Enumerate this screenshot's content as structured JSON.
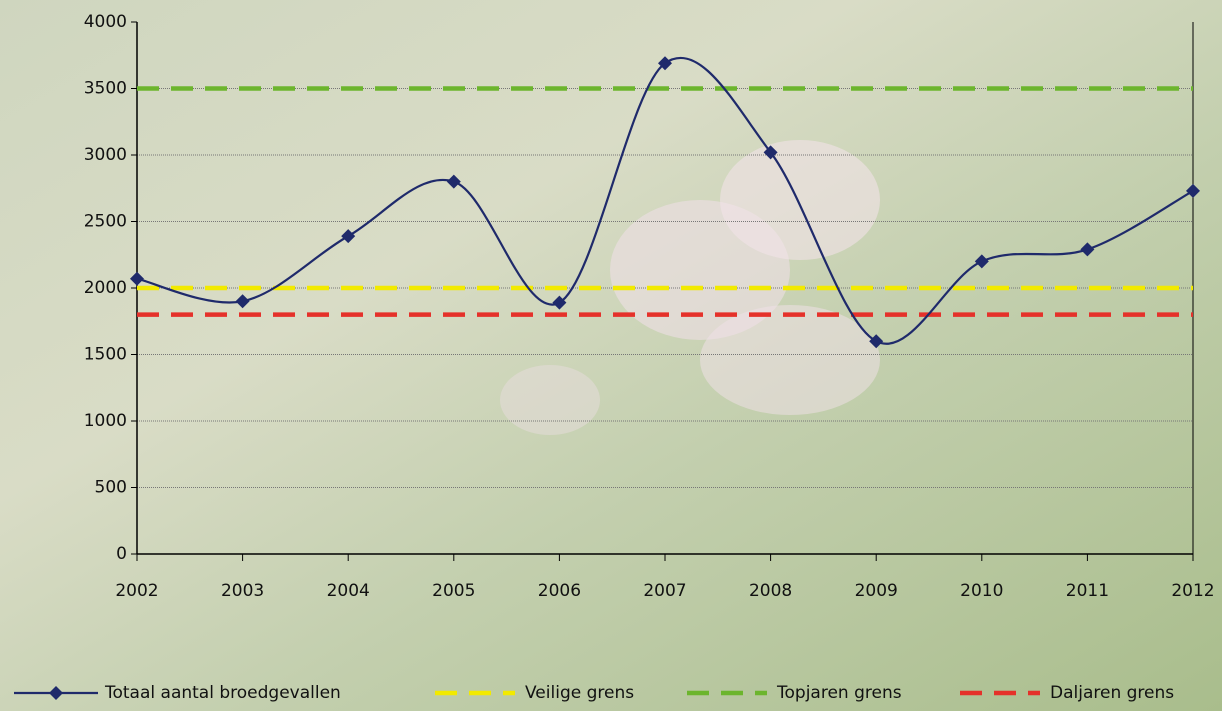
{
  "chart_data": {
    "type": "line",
    "x": [
      2002,
      2003,
      2004,
      2005,
      2006,
      2007,
      2008,
      2009,
      2010,
      2011,
      2012
    ],
    "xlim": [
      2002,
      2012
    ],
    "xticks": [
      2002,
      2003,
      2004,
      2005,
      2006,
      2007,
      2008,
      2009,
      2010,
      2011,
      2012
    ],
    "ylim": [
      0,
      4000
    ],
    "yticks": [
      0,
      500,
      1000,
      1500,
      2000,
      2500,
      3000,
      3500,
      4000
    ],
    "grid": true,
    "legend": "bottom",
    "series": [
      {
        "name": "Totaal aantal broedgevallen",
        "color": "#1f2a6b",
        "values": [
          2070,
          1900,
          2390,
          2800,
          1890,
          3690,
          3020,
          1600,
          2200,
          2290,
          2730
        ]
      }
    ],
    "reference_lines": [
      {
        "name": "Veilige grens",
        "color": "#f2ea00",
        "value": 2000
      },
      {
        "name": "Topjaren grens",
        "color": "#6cb52d",
        "value": 3500
      },
      {
        "name": "Daljaren grens",
        "color": "#e5312a",
        "value": 1800
      }
    ]
  }
}
